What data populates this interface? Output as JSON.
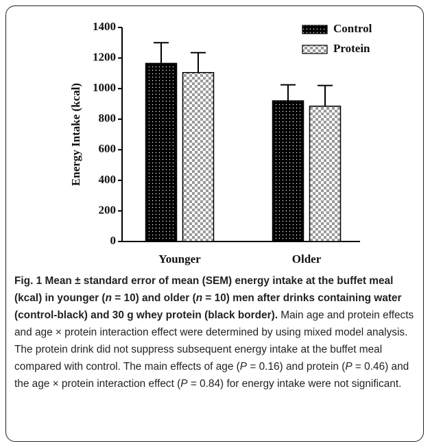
{
  "chart_data": {
    "type": "bar",
    "categories": [
      "Younger",
      "Older"
    ],
    "ylabel": "Energy Intake (kcal)",
    "ylim": [
      0,
      1400
    ],
    "yticks": [
      0,
      200,
      400,
      600,
      800,
      1000,
      1200,
      1400
    ],
    "series": [
      {
        "name": "Control",
        "color": "#000000",
        "pattern": "dots",
        "values": [
          1165,
          920
        ],
        "errors": [
          135,
          105
        ]
      },
      {
        "name": "Protein",
        "color": "#9a9a9a",
        "pattern": "checker",
        "values": [
          1105,
          885
        ],
        "errors": [
          130,
          135
        ]
      }
    ],
    "legend": "upper right"
  },
  "caption": [
    {
      "text": "Fig. 1 Mean ± standard error of mean (SEM) energy intake at the buffet meal (kcal) in younger (",
      "style": "bold"
    },
    {
      "text": "n",
      "style": "bold-italic"
    },
    {
      "text": " = 10) and older (",
      "style": "bold"
    },
    {
      "text": "n",
      "style": "bold-italic"
    },
    {
      "text": " = 10) men after drinks containing water (control-black) and 30 g whey protein (black border).",
      "style": "bold"
    },
    {
      "text": " Main age and protein effects and age × protein interaction effect were determined by using mixed model analysis. The protein drink did not suppress subsequent energy intake at the buffet meal compared with control. The main effects of age (",
      "style": "normal"
    },
    {
      "text": "P",
      "style": "italic"
    },
    {
      "text": " = 0.16) and protein (",
      "style": "normal"
    },
    {
      "text": "P",
      "style": "italic"
    },
    {
      "text": " = 0.46) and the age × protein interaction effect (",
      "style": "normal"
    },
    {
      "text": "P",
      "style": "italic"
    },
    {
      "text": " = 0.84) for energy intake were not significant.",
      "style": "normal"
    }
  ]
}
